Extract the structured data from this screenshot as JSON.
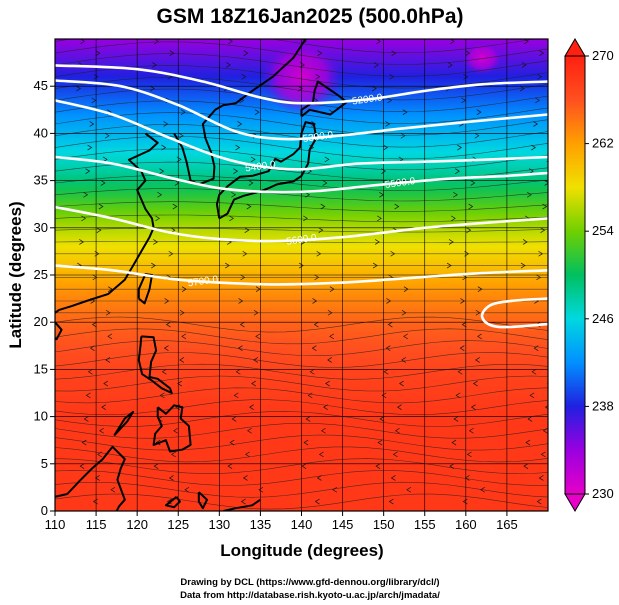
{
  "chart_data": {
    "type": "heatmap",
    "title": "GSM 18Z16Jan2025 (500.0hPa)",
    "xlabel": "Longitude (degrees)",
    "ylabel": "Latitude  (degrees)",
    "xlim": [
      110,
      170
    ],
    "ylim": [
      0,
      50
    ],
    "xticks": [
      110,
      115,
      120,
      125,
      130,
      135,
      140,
      145,
      150,
      155,
      160,
      165
    ],
    "yticks": [
      0,
      5,
      10,
      15,
      20,
      25,
      30,
      35,
      40,
      45
    ],
    "grid": true,
    "colorbar": {
      "min": 230,
      "max": 270,
      "ticks": [
        230,
        238,
        246,
        254,
        262,
        270
      ],
      "colors": [
        "#e600c8",
        "#9a00e0",
        "#2020e0",
        "#0090ff",
        "#00d8e0",
        "#00c060",
        "#70d000",
        "#f0e000",
        "#ffa000",
        "#ff5020",
        "#ff2010"
      ]
    },
    "temperature_profile": {
      "lat": [
        0,
        10,
        15,
        20,
        23,
        27,
        30,
        33,
        36,
        39,
        42,
        45,
        48,
        50
      ],
      "values": [
        268,
        268,
        267,
        265,
        263,
        259,
        256,
        252,
        248,
        245,
        242,
        239,
        236,
        234
      ]
    },
    "contours": [
      {
        "label": "5200.0",
        "lon": [
          110,
          120,
          128,
          135,
          140,
          148,
          155,
          162,
          170
        ],
        "lat": [
          47.2,
          46.8,
          45.5,
          43.8,
          43.2,
          43.6,
          44.5,
          45.2,
          45.5
        ]
      },
      {
        "label": "5300.0",
        "lon": [
          110,
          118,
          125,
          132,
          138,
          145,
          152,
          160,
          170
        ],
        "lat": [
          45.6,
          45.0,
          43.0,
          40.2,
          39.4,
          39.8,
          40.5,
          41.2,
          42.0
        ]
      },
      {
        "label": "5400.0",
        "lon": [
          110,
          117,
          124,
          130,
          135,
          140,
          147,
          155,
          162,
          170
        ],
        "lat": [
          43.5,
          42.0,
          39.5,
          37.5,
          36.5,
          36.2,
          36.8,
          37.0,
          37.2,
          37.5
        ]
      },
      {
        "label": "5500.0",
        "lon": [
          110,
          117,
          124,
          130,
          136,
          142,
          150,
          158,
          165,
          170
        ],
        "lat": [
          37.5,
          36.8,
          35.3,
          34.2,
          33.8,
          33.9,
          34.6,
          35.2,
          35.5,
          35.8
        ]
      },
      {
        "label": "5600.0",
        "lon": [
          110,
          117,
          124,
          130,
          137,
          145,
          155,
          162,
          170
        ],
        "lat": [
          32.2,
          31.0,
          29.5,
          28.8,
          28.6,
          29.0,
          30.0,
          30.5,
          31.0
        ]
      },
      {
        "label": "5700.0",
        "lon": [
          110,
          117,
          124,
          130,
          137,
          145,
          155,
          162,
          170
        ],
        "lat": [
          26.0,
          25.5,
          24.6,
          24.2,
          24.0,
          24.2,
          24.8,
          25.2,
          25.5
        ]
      }
    ],
    "closed_contours": [
      {
        "label": "5800.0",
        "lon": [
          170,
          164,
          162,
          163,
          166,
          170
        ],
        "lat": [
          19.8,
          19.5,
          20.5,
          21.8,
          22.3,
          22.5
        ]
      }
    ],
    "warm_cells": [
      {
        "lon": 140,
        "lat": 46,
        "rlon": 5,
        "rlat": 4,
        "kind": "low"
      },
      {
        "lon": 162,
        "lat": 48,
        "rlon": 2.5,
        "rlat": 1.8,
        "kind": "low"
      }
    ]
  },
  "credits": {
    "line1": "Drawing by DCL (https://www.gfd-dennou.org/library/dcl/)",
    "line2": "Data from http://database.rish.kyoto-u.ac.jp/arch/jmadata/"
  }
}
